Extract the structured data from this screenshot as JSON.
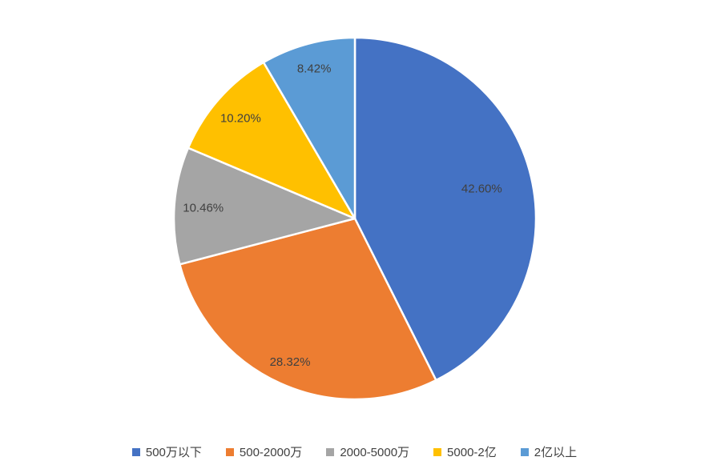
{
  "chart_data": {
    "type": "pie",
    "title": "",
    "categories": [
      "500万以下",
      "500-2000万",
      "2000-5000万",
      "5000-2亿",
      "2亿以上"
    ],
    "values": [
      42.6,
      28.32,
      10.46,
      10.2,
      8.42
    ],
    "data_labels": [
      "42.60%",
      "28.32%",
      "10.46%",
      "10.20%",
      "8.42%"
    ],
    "colors": [
      "#4472C4",
      "#ED7D31",
      "#A5A5A5",
      "#FFC000",
      "#5B9BD5"
    ],
    "start_angle_deg": 0,
    "direction": "clockwise",
    "legend_position": "bottom",
    "slice_border_color": "#FFFFFF",
    "data_label_color": "#404040",
    "legend_text_color": "#404040",
    "background_color": "#FFFFFF"
  }
}
